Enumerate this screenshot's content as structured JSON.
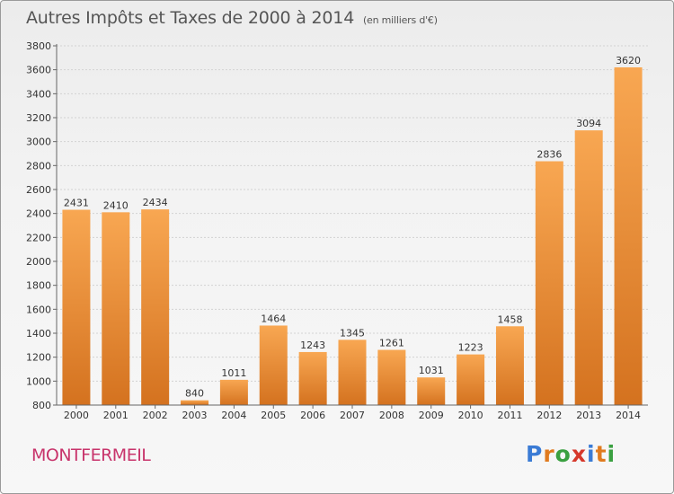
{
  "title": "Autres Impôts et Taxes de 2000 à 2014",
  "unit_label": "(en milliers d'€)",
  "commune": "MONTFERMEIL",
  "logo": {
    "text": "Proxiti",
    "letters": [
      "P",
      "r",
      "o",
      "x",
      "i",
      "t",
      "i"
    ],
    "colors": [
      "#3a7bd5",
      "#e07b1f",
      "#3aa040",
      "#d6382b",
      "#3a7bd5",
      "#e07b1f",
      "#3aa040"
    ]
  },
  "colors": {
    "bar_top": "#f8a752",
    "bar_bottom": "#d4721f",
    "title": "#555555",
    "commune": "#c8346b"
  },
  "chart_data": {
    "type": "bar",
    "title": "Autres Impôts et Taxes de 2000 à 2014",
    "subtitle": "(en milliers d'€)",
    "xlabel": "",
    "ylabel": "",
    "categories": [
      "2000",
      "2001",
      "2002",
      "2003",
      "2004",
      "2005",
      "2006",
      "2007",
      "2008",
      "2009",
      "2010",
      "2011",
      "2012",
      "2013",
      "2014"
    ],
    "values": [
      2431,
      2410,
      2434,
      840,
      1011,
      1464,
      1243,
      1345,
      1261,
      1031,
      1223,
      1458,
      2836,
      3094,
      3620
    ],
    "data_labels": [
      "2431",
      "2410",
      "2434",
      "840",
      "1011",
      "1464",
      "1243",
      "1345",
      "1261",
      "1031",
      "1223",
      "1458",
      "2836",
      "3094",
      "3620"
    ],
    "ylim": [
      800,
      3800
    ],
    "yticks": [
      800,
      1000,
      1200,
      1400,
      1600,
      1800,
      2000,
      2200,
      2400,
      2600,
      2800,
      3000,
      3200,
      3400,
      3600,
      3800
    ],
    "grid": true
  }
}
